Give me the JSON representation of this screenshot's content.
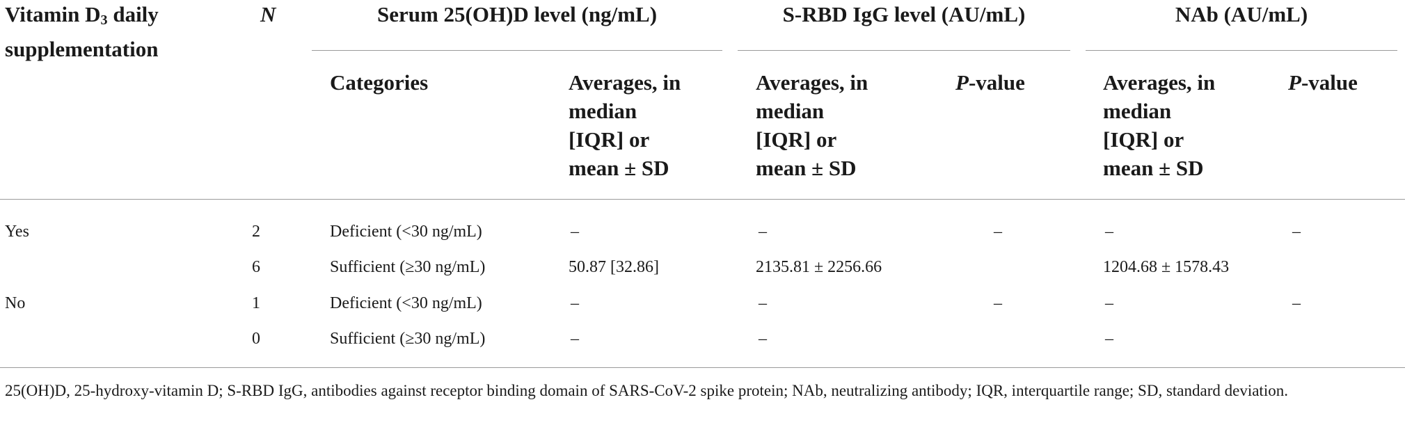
{
  "table": {
    "headers": {
      "supplementation_line1": "Vitamin D",
      "supplementation_sub": "3",
      "supplementation_line1_end": " daily",
      "supplementation_line2": "supplementation",
      "n": "N",
      "serum_group": "Serum 25(OH)D level (ng/mL)",
      "igg_group": "S-RBD IgG level (AU/mL)",
      "nab_group": "NAb (AU/mL)",
      "categories": "Categories",
      "averages_lines": [
        "Averages, in",
        "median",
        "[IQR] or",
        "mean ± SD"
      ],
      "p_value_italic": "P",
      "p_value_rest": "-value"
    },
    "rows": [
      {
        "supp": "Yes",
        "n": "2",
        "category": "Deficient (<30 ng/mL)",
        "serum_avg": "–",
        "igg_avg": "–",
        "igg_p": "–",
        "nab_avg": "–",
        "nab_p": "–"
      },
      {
        "supp": "",
        "n": "6",
        "category": "Sufficient (≥30 ng/mL)",
        "serum_avg": "50.87 [32.86]",
        "igg_avg": "2135.81 ± 2256.66",
        "igg_p": "",
        "nab_avg": "1204.68 ± 1578.43",
        "nab_p": ""
      },
      {
        "supp": "No",
        "n": "1",
        "category": "Deficient (<30 ng/mL)",
        "serum_avg": "–",
        "igg_avg": "–",
        "igg_p": "–",
        "nab_avg": "–",
        "nab_p": "–"
      },
      {
        "supp": "",
        "n": "0",
        "category": "Sufficient (≥30 ng/mL)",
        "serum_avg": "–",
        "igg_avg": "–",
        "igg_p": "",
        "nab_avg": "–",
        "nab_p": ""
      }
    ],
    "footnote": "25(OH)D, 25-hydroxy-vitamin D; S-RBD IgG, antibodies against receptor binding domain of SARS-CoV-2 spike protein; NAb, neutralizing antibody; IQR, interquartile range; SD, standard deviation."
  }
}
